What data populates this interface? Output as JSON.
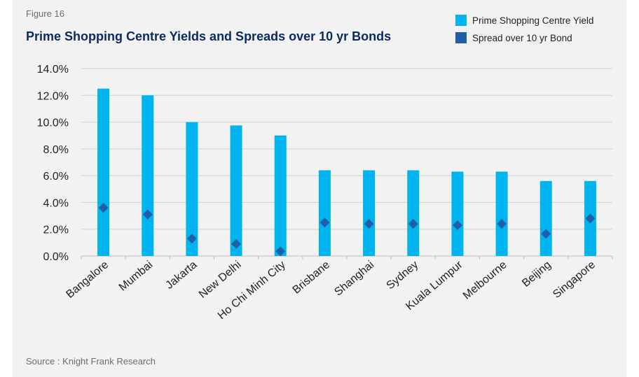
{
  "figure_label": "Figure 16",
  "source": "Source : Knight Frank Research",
  "colors": {
    "bar": "#00b4f0",
    "marker": "#1f5fa8",
    "title": "#0b2b5c",
    "panel": "#f2f2f2"
  },
  "chart_data": {
    "type": "bar",
    "title": "Prime Shopping Centre Yields and Spreads over 10 yr Bonds",
    "xlabel": "",
    "ylabel": "",
    "ylim": [
      0,
      14
    ],
    "ytick_step": 2,
    "y_format": "percent_1dp",
    "grid": true,
    "legend_position": "top-right",
    "categories": [
      "Bangalore",
      "Mumbai",
      "Jakarta",
      "New Delhi",
      "Ho Chi Minh City",
      "Brisbane",
      "Shanghai",
      "Sydney",
      "Kuala Lumpur",
      "Melbourne",
      "Beijing",
      "Singapore"
    ],
    "series": [
      {
        "name": "Prime Shopping Centre Yield",
        "type": "bar",
        "values": [
          12.5,
          12.0,
          10.0,
          9.75,
          9.0,
          6.4,
          6.4,
          6.4,
          6.3,
          6.3,
          5.6,
          5.6
        ]
      },
      {
        "name": "Spread over 10 yr Bond",
        "type": "scatter",
        "marker": "diamond",
        "values": [
          3.6,
          3.1,
          1.3,
          0.9,
          0.35,
          2.5,
          2.4,
          2.4,
          2.3,
          2.4,
          1.65,
          2.8
        ]
      }
    ]
  }
}
